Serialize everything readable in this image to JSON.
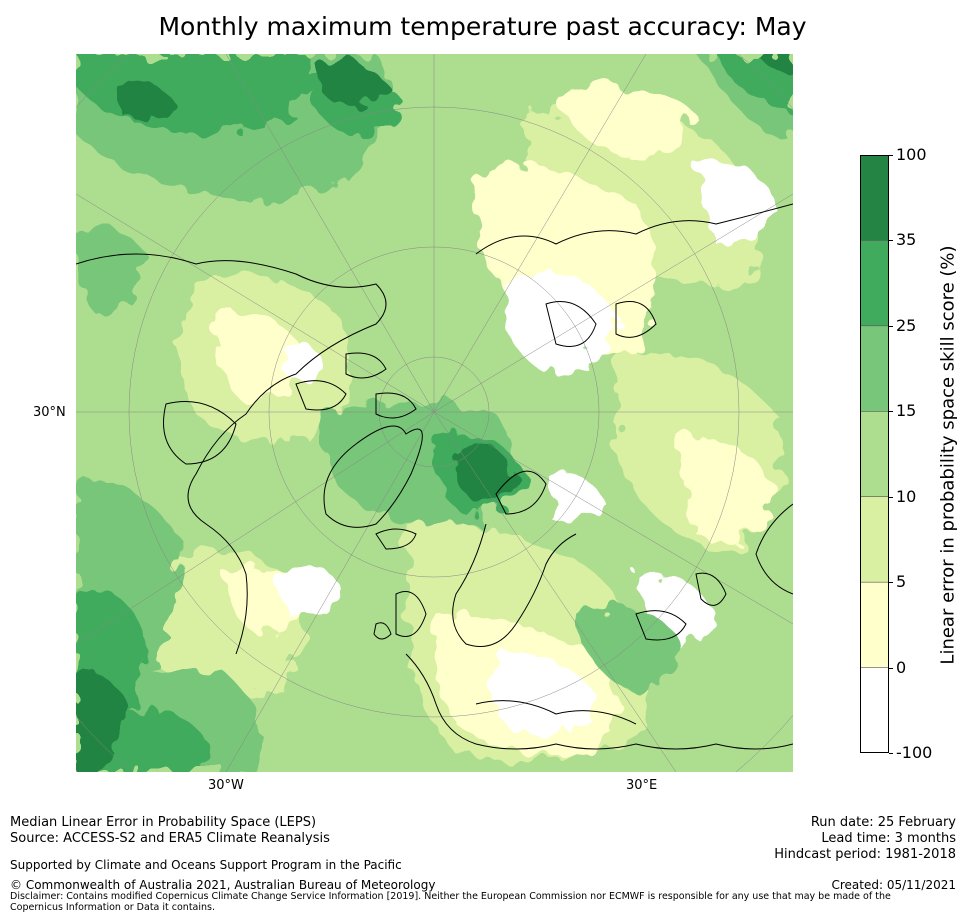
{
  "title": "Monthly maximum temperature past accuracy: May",
  "map": {
    "projection": "north-polar-stereographic",
    "labels": {
      "lat": "30°N",
      "lon_west": "30°W",
      "lon_east": "30°E"
    },
    "colors": {
      "c_neg": "#ffffff",
      "c0": "#ffffcc",
      "c5": "#d9f0a3",
      "c10": "#addd8e",
      "c15": "#78c679",
      "c25": "#41ab5d",
      "c35": "#238443",
      "coast": "#000000",
      "grid": "#888888"
    }
  },
  "colorbar": {
    "label": "Linear error in probability space skill score (%)",
    "ticks": [
      "100",
      "35",
      "25",
      "15",
      "10",
      "5",
      "0",
      "-100"
    ],
    "bins": [
      {
        "range": "35 to 100",
        "color": "#238443"
      },
      {
        "range": "25 to 35",
        "color": "#41ab5d"
      },
      {
        "range": "15 to 25",
        "color": "#78c679"
      },
      {
        "range": "10 to 15",
        "color": "#addd8e"
      },
      {
        "range": "5 to 10",
        "color": "#d9f0a3"
      },
      {
        "range": "0 to 5",
        "color": "#ffffcc"
      },
      {
        "range": "-100 to 0",
        "color": "#ffffff"
      }
    ]
  },
  "footer": {
    "method": "Median Linear Error in Probability Space (LEPS)",
    "source": "Source: ACCESS-S2 and ERA5 Climate Reanalysis",
    "support": "Supported by Climate and Oceans Support Program in the Pacific",
    "copyright": "© Commonwealth of Australia 2021, Australian Bureau of Meteorology",
    "disclaimer": "Disclaimer: Contains modified Copernicus Climate Change Service Information [2019]. Neither the European Commission nor ECMWF is responsible for any use that may be made of the Copernicus Information or Data it contains.",
    "run_date": "Run date: 25 February",
    "lead_time": "Lead time: 3 months",
    "hindcast": "Hindcast period: 1981-2018",
    "created": "Created: 05/11/2021"
  }
}
